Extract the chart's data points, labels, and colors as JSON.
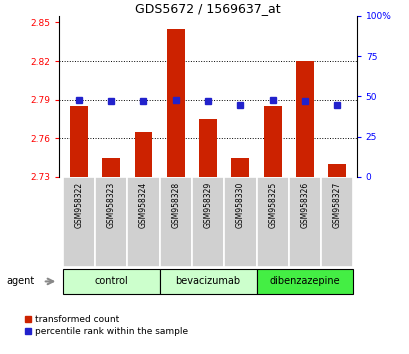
{
  "title": "GDS5672 / 1569637_at",
  "samples": [
    "GSM958322",
    "GSM958323",
    "GSM958324",
    "GSM958328",
    "GSM958329",
    "GSM958330",
    "GSM958325",
    "GSM958326",
    "GSM958327"
  ],
  "bar_values": [
    2.785,
    2.745,
    2.765,
    2.845,
    2.775,
    2.745,
    2.785,
    2.82,
    2.74
  ],
  "percentile_values": [
    48,
    47,
    47,
    48,
    47,
    45,
    48,
    47,
    45
  ],
  "bar_bottom": 2.73,
  "ylim_left": [
    2.73,
    2.855
  ],
  "ylim_right": [
    0,
    100
  ],
  "yticks_left": [
    2.73,
    2.76,
    2.79,
    2.82,
    2.85
  ],
  "yticks_right": [
    0,
    25,
    50,
    75,
    100
  ],
  "ytick_labels_right": [
    "0",
    "25",
    "50",
    "75",
    "100%"
  ],
  "gridlines": [
    2.76,
    2.79,
    2.82
  ],
  "bar_color": "#cc2200",
  "percentile_color": "#2222cc",
  "groups": [
    {
      "label": "control",
      "indices": [
        0,
        1,
        2
      ],
      "color": "#ccffcc"
    },
    {
      "label": "bevacizumab",
      "indices": [
        3,
        4,
        5
      ],
      "color": "#ccffcc"
    },
    {
      "label": "dibenzazepine",
      "indices": [
        6,
        7,
        8
      ],
      "color": "#44ee44"
    }
  ],
  "agent_label": "agent",
  "legend_bar_label": "transformed count",
  "legend_pct_label": "percentile rank within the sample",
  "title_fontsize": 9,
  "tick_fontsize": 6.5,
  "sample_fontsize": 5.5,
  "group_fontsize": 7,
  "legend_fontsize": 6.5,
  "agent_fontsize": 7,
  "label_bg": "#d0d0d0",
  "bar_width": 0.55
}
